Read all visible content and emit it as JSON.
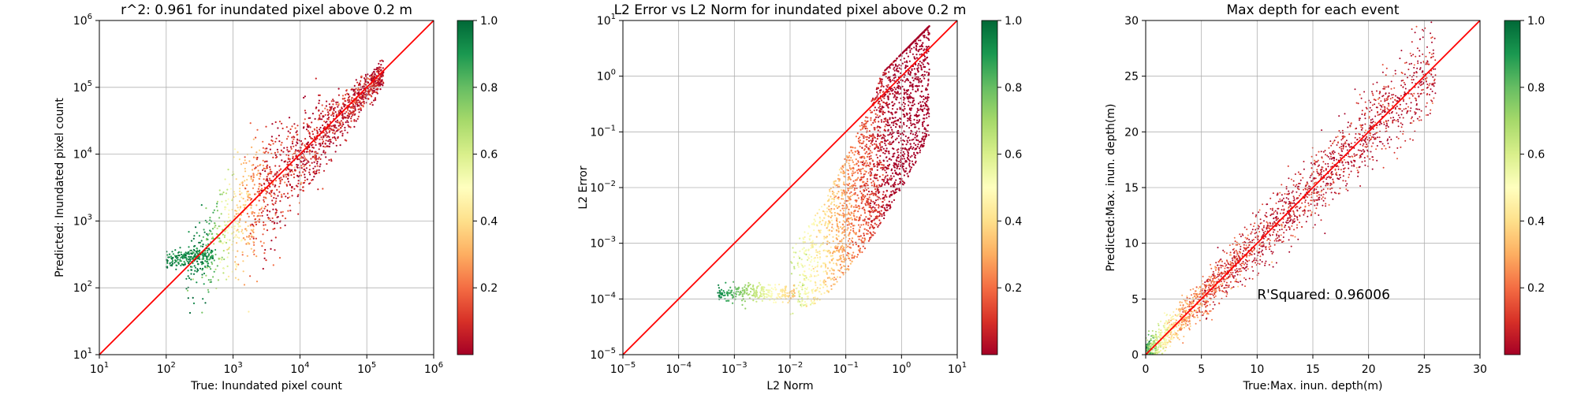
{
  "colors": {
    "identity_line": "#ff0000",
    "grid": "#b0b0b0",
    "colormap": "RdYlGn",
    "colormap_stops": [
      "#a50026",
      "#d73027",
      "#f46d43",
      "#fdae61",
      "#fee08b",
      "#ffffbf",
      "#d9ef8b",
      "#a6d96a",
      "#66bd63",
      "#1a9850",
      "#006837"
    ]
  },
  "chart_data": [
    {
      "type": "scatter",
      "title": "r^2: 0.961 for inundated pixel above 0.2 m",
      "xlabel": "True: Inundated pixel count",
      "ylabel": "Predicted: Inundated pixel count",
      "xscale": "log",
      "yscale": "log",
      "xlim": [
        10,
        1000000
      ],
      "ylim": [
        10,
        1000000
      ],
      "x_ticks": [
        {
          "base": "10",
          "exp": "1"
        },
        {
          "base": "10",
          "exp": "2"
        },
        {
          "base": "10",
          "exp": "3"
        },
        {
          "base": "10",
          "exp": "4"
        },
        {
          "base": "10",
          "exp": "5"
        },
        {
          "base": "10",
          "exp": "6"
        }
      ],
      "y_ticks": [
        {
          "base": "10",
          "exp": "1"
        },
        {
          "base": "10",
          "exp": "2"
        },
        {
          "base": "10",
          "exp": "3"
        },
        {
          "base": "10",
          "exp": "4"
        },
        {
          "base": "10",
          "exp": "5"
        },
        {
          "base": "10",
          "exp": "6"
        }
      ],
      "grid": true,
      "reference_line": "y = x",
      "colorbar": {
        "range": [
          0,
          1.0
        ],
        "ticks": [
          "0.2",
          "0.4",
          "0.6",
          "0.8",
          "1.0"
        ]
      },
      "point_cloud": "dense band along y = x from about 10^2.3 to 10^5.2; green points cluster near x ~ 300, y ~ 300; red points dominate high counts"
    },
    {
      "type": "scatter",
      "title": "L2 Error vs L2 Norm for inundated pixel above 0.2 m",
      "xlabel": "L2 Norm",
      "ylabel": "L2 Error",
      "xscale": "log",
      "yscale": "log",
      "xlim": [
        1e-05,
        10
      ],
      "ylim": [
        1e-05,
        10
      ],
      "x_ticks": [
        {
          "base": "10",
          "exp": "−5"
        },
        {
          "base": "10",
          "exp": "−4"
        },
        {
          "base": "10",
          "exp": "−3"
        },
        {
          "base": "10",
          "exp": "−2"
        },
        {
          "base": "10",
          "exp": "−1"
        },
        {
          "base": "10",
          "exp": "0"
        },
        {
          "base": "10",
          "exp": "1"
        }
      ],
      "y_ticks": [
        {
          "base": "10",
          "exp": "−5"
        },
        {
          "base": "10",
          "exp": "−4"
        },
        {
          "base": "10",
          "exp": "−3"
        },
        {
          "base": "10",
          "exp": "−2"
        },
        {
          "base": "10",
          "exp": "−1"
        },
        {
          "base": "10",
          "exp": "0"
        },
        {
          "base": "10",
          "exp": "1"
        }
      ],
      "grid": true,
      "reference_line": "y = x",
      "colorbar": {
        "range": [
          0,
          1.0
        ],
        "ticks": [
          "0.2",
          "0.4",
          "0.6",
          "0.8",
          "1.0"
        ]
      },
      "point_cloud": "green cluster at L2 Norm ~ 10^-3, L2 Error ~ 10^-4; dense red region rising from 10^-2 to 10^0.5 on x, 10^-4 to 10^0 on y, below the identity line"
    },
    {
      "type": "scatter",
      "title": "Max depth for each event",
      "xlabel": "True:Max. inun. depth(m)",
      "ylabel": "Predicted:Max. inun. depth(m)",
      "xlim": [
        0,
        30
      ],
      "ylim": [
        0,
        30
      ],
      "x_ticks": [
        "0",
        "5",
        "10",
        "15",
        "20",
        "25",
        "30"
      ],
      "y_ticks": [
        "0",
        "5",
        "10",
        "15",
        "20",
        "25",
        "30"
      ],
      "grid": true,
      "reference_line": "y = x",
      "annotation": {
        "text": "R'Squared: 0.96006",
        "x": 10,
        "y": 5
      },
      "colorbar": {
        "range": [
          0,
          1.0
        ],
        "ticks": [
          "0.2",
          "0.4",
          "0.6",
          "0.8",
          "1.0"
        ]
      },
      "point_cloud": "points scattered tightly along y = x from 0 to about 27; green/yellow near origin, red dominates above 10"
    }
  ]
}
